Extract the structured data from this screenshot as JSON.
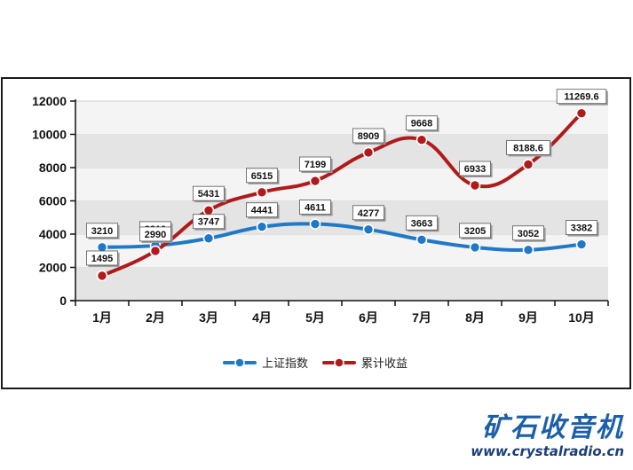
{
  "chart_data": {
    "type": "line",
    "categories": [
      "1月",
      "2月",
      "3月",
      "4月",
      "5月",
      "6月",
      "7月",
      "8月",
      "9月",
      "10月"
    ],
    "series": [
      {
        "name": "上证指数",
        "color": "#1f78c8",
        "values": [
          3210,
          3310,
          3747,
          4441,
          4611,
          4277,
          3663,
          3205,
          3052,
          3382
        ],
        "labels": [
          "3210",
          "3310",
          "3747",
          "4441",
          "4611",
          "4277",
          "3663",
          "3205",
          "3052",
          "3382"
        ]
      },
      {
        "name": "累计收益",
        "color": "#b01a1a",
        "values": [
          1495,
          2990,
          5431,
          6515,
          7199,
          8909,
          9668,
          6933,
          8188.6,
          11269.6
        ],
        "labels": [
          "1495",
          "2990",
          "5431",
          "6515",
          "7199",
          "8909",
          "9668",
          "6933",
          "8188.6",
          "11269.6"
        ]
      }
    ],
    "yticks": [
      "0",
      "2000",
      "4000",
      "6000",
      "8000",
      "10000",
      "12000"
    ],
    "ylim": [
      0,
      12000
    ],
    "grid": "horizontal bands",
    "legend": "bottom-center"
  },
  "brand": {
    "name": "矿石收音机",
    "url": "www.crystalradio.cn"
  }
}
